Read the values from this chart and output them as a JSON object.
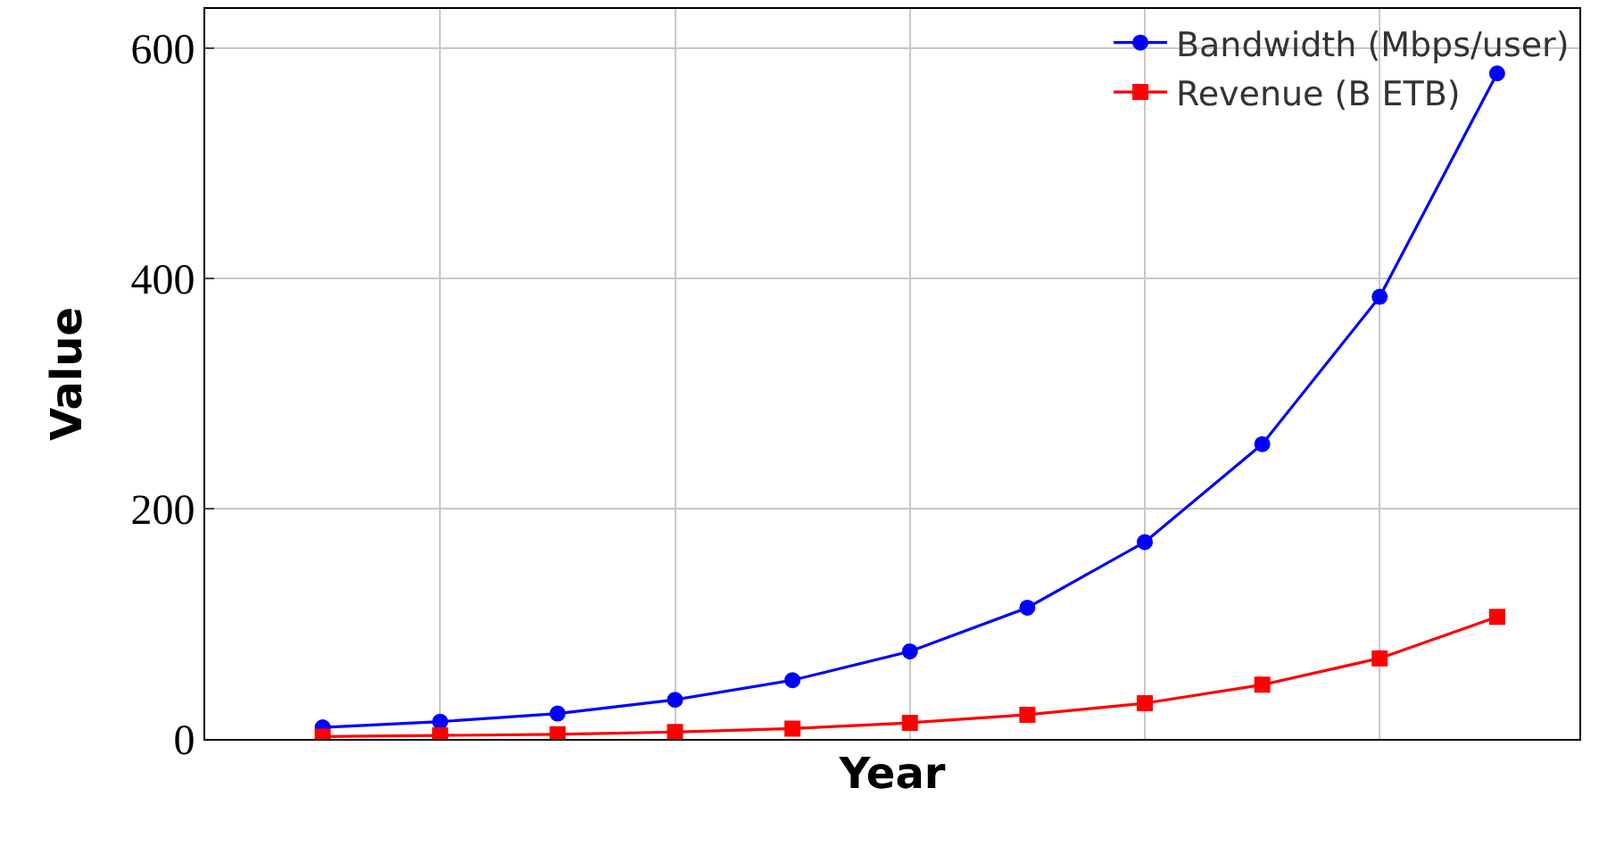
{
  "chart_data": {
    "type": "line",
    "xlabel": "Year",
    "ylabel": "Value",
    "categories": [
      null,
      null,
      null,
      null,
      null,
      null,
      null,
      null,
      null,
      null,
      null
    ],
    "series": [
      {
        "name": "Bandwidth (Mbps/user)",
        "color": "#0000ff",
        "marker": "circle",
        "values": [
          10,
          15,
          22,
          34,
          51,
          76,
          114,
          171,
          256,
          384,
          578
        ]
      },
      {
        "name": "Revenue (B ETB)",
        "color": "#ff0000",
        "marker": "square",
        "values": [
          2,
          3,
          4,
          6,
          9,
          14,
          21,
          31,
          47,
          70,
          106
        ]
      }
    ],
    "ylim": [
      0,
      634
    ],
    "yticks": [
      0,
      200,
      400,
      600
    ],
    "grid": true,
    "legend": "top right",
    "tick_labels": "y",
    "line_style": "solid"
  }
}
